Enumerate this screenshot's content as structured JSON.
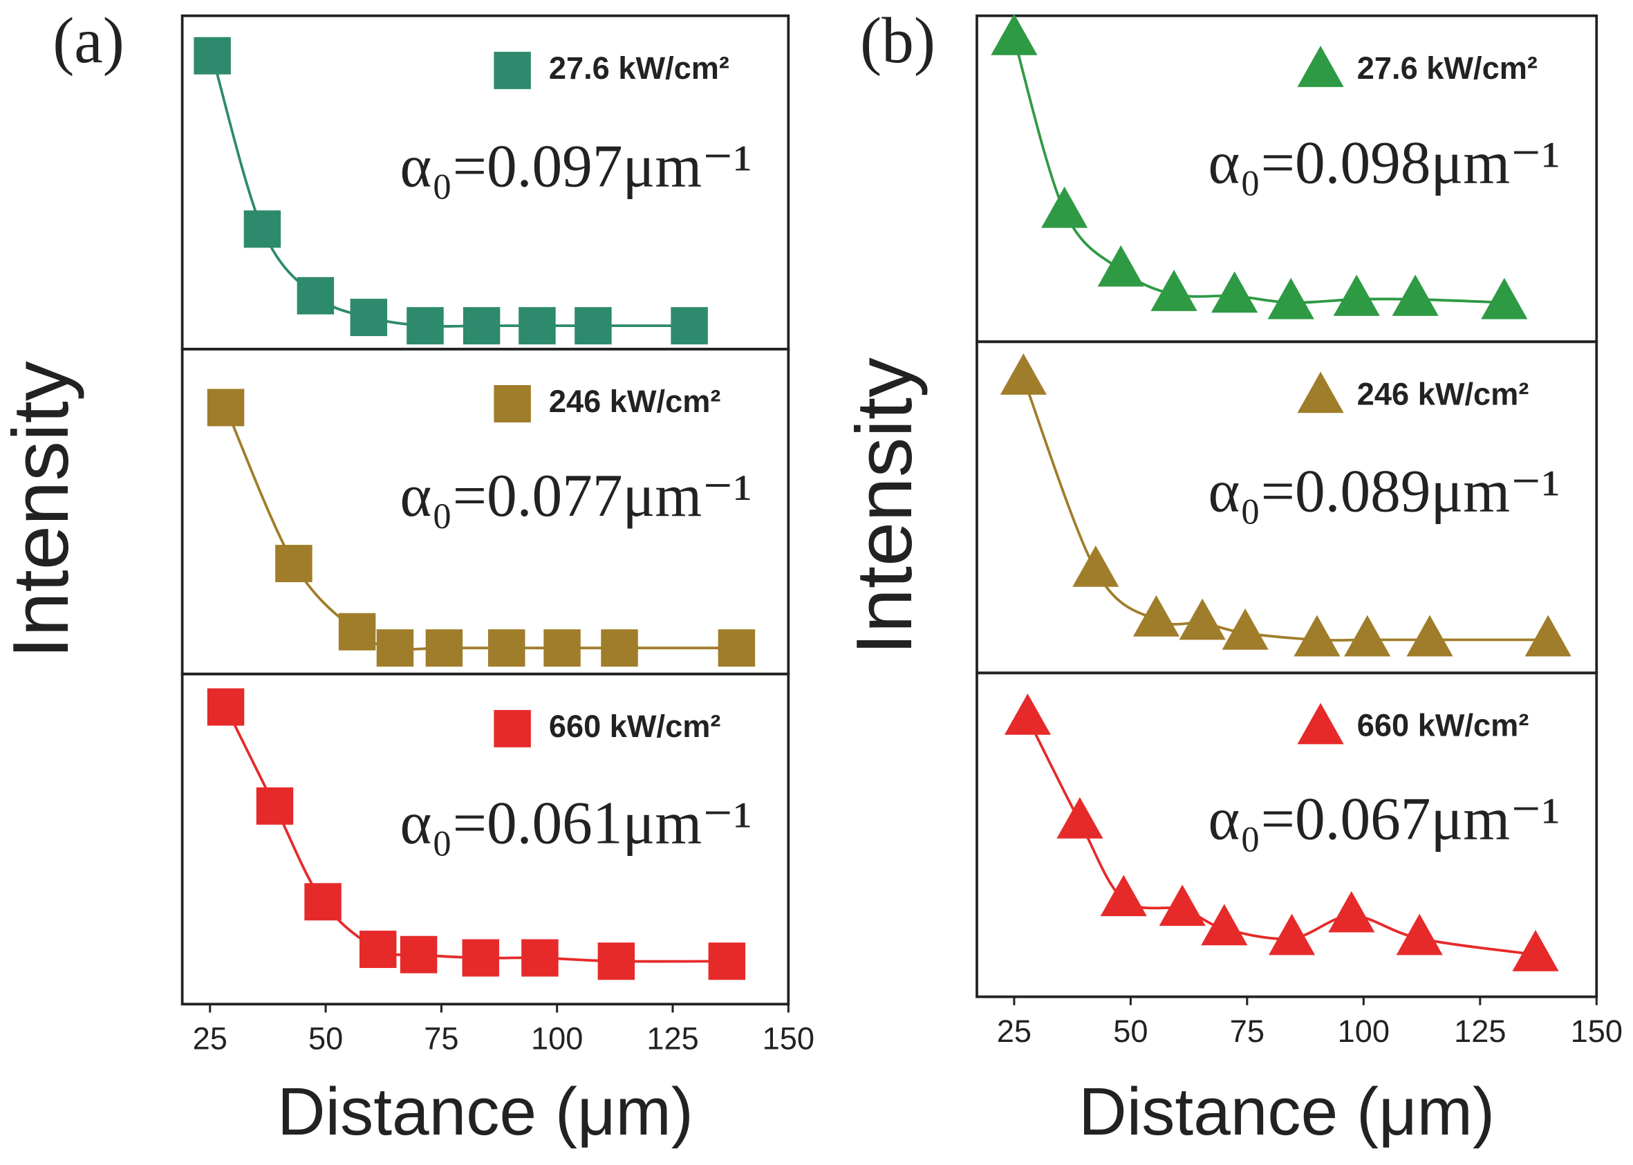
{
  "chart_data": [
    {
      "type": "scatter",
      "label": "(a)",
      "xlabel": "Distance (μm)",
      "ylabel": "Intensity",
      "marker": "square",
      "xlim": [
        19,
        150
      ],
      "xticks": [
        25,
        50,
        75,
        100,
        125,
        150
      ],
      "subplots": [
        {
          "ylim": [
            0,
            1
          ],
          "annotation": "α₀=0.097μm⁻¹",
          "series": [
            {
              "name": "27.6 kW/cm²",
              "color": "#2e8a6c",
              "x": [
                25.5,
                36.3,
                47.8,
                59.3,
                71.5,
                83.7,
                95.7,
                107.8,
                128.6
              ],
              "values": [
                0.88,
                0.36,
                0.16,
                0.095,
                0.07,
                0.07,
                0.07,
                0.07,
                0.07
              ]
            }
          ]
        },
        {
          "ylim": [
            0,
            1
          ],
          "annotation": "α₀=0.077μm⁻¹",
          "series": [
            {
              "name": "246 kW/cm²",
              "color": "#a07d2a",
              "x": [
                28.4,
                43.1,
                56.8,
                65,
                75.6,
                89.1,
                101.1,
                113.5,
                138.8
              ],
              "values": [
                0.82,
                0.34,
                0.13,
                0.08,
                0.08,
                0.08,
                0.08,
                0.08,
                0.08
              ]
            }
          ]
        },
        {
          "ylim": [
            0,
            1
          ],
          "annotation": "α₀=0.061μm⁻¹",
          "series": [
            {
              "name": "660 kW/cm²",
              "color": "#e62a2a",
              "x": [
                28.4,
                39,
                49.4,
                61.3,
                70.1,
                83.5,
                96.3,
                112.8,
                136.7
              ],
              "values": [
                0.9,
                0.6,
                0.31,
                0.166,
                0.15,
                0.14,
                0.14,
                0.13,
                0.13
              ]
            }
          ]
        }
      ]
    },
    {
      "type": "scatter",
      "label": "(b)",
      "xlabel": "Distance (μm)",
      "ylabel": "Intensity",
      "marker": "triangle",
      "xlim": [
        17,
        150
      ],
      "xticks": [
        25,
        50,
        75,
        100,
        125,
        150
      ],
      "subplots": [
        {
          "ylim": [
            0,
            1
          ],
          "annotation": "α₀=0.098μm⁻¹",
          "series": [
            {
              "name": "27.6 kW/cm²",
              "color": "#2e9a44",
              "x": [
                25,
                35.8,
                47.9,
                59.3,
                72.3,
                84.4,
                98.5,
                111.1,
                130.2
              ],
              "values": [
                0.93,
                0.4,
                0.22,
                0.145,
                0.14,
                0.12,
                0.13,
                0.13,
                0.12
              ]
            }
          ]
        },
        {
          "ylim": [
            0,
            1
          ],
          "annotation": "α₀=0.089μm⁻¹",
          "series": [
            {
              "name": "246 kW/cm²",
              "color": "#a07d2a",
              "x": [
                27,
                42.5,
                55.5,
                65.4,
                74.6,
                90,
                100.8,
                114.2,
                139.6
              ],
              "values": [
                0.89,
                0.31,
                0.16,
                0.15,
                0.12,
                0.1,
                0.1,
                0.1,
                0.1
              ]
            }
          ]
        },
        {
          "ylim": [
            0,
            1
          ],
          "annotation": "α₀=0.067μm⁻¹",
          "series": [
            {
              "name": "660 kW/cm²",
              "color": "#e62a2a",
              "x": [
                27.9,
                39.1,
                48.5,
                61.1,
                70.1,
                84.6,
                97.4,
                112,
                136.9
              ],
              "values": [
                0.86,
                0.54,
                0.3,
                0.27,
                0.21,
                0.18,
                0.25,
                0.18,
                0.13
              ]
            }
          ]
        }
      ]
    }
  ]
}
